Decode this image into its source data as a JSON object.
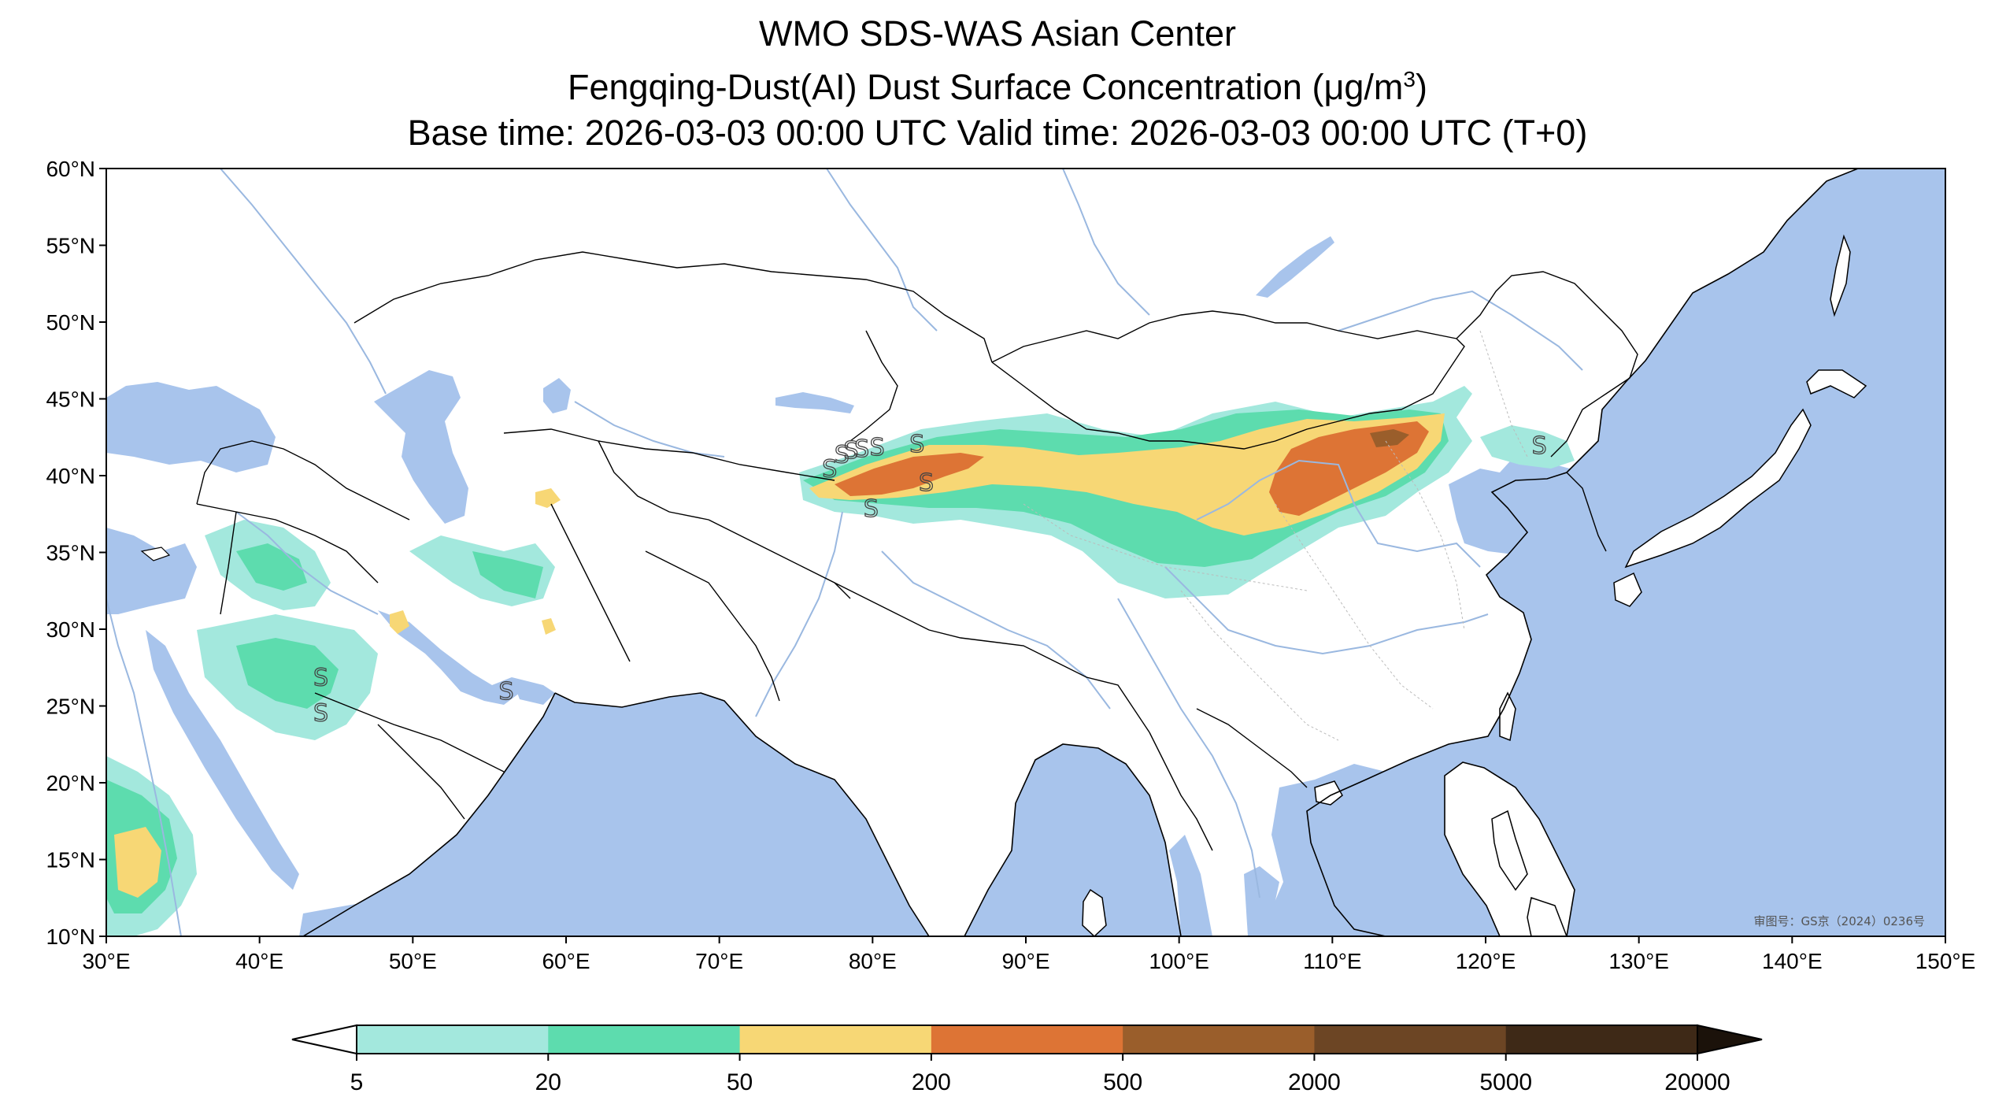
{
  "title": {
    "line1": "WMO SDS-WAS Asian Center",
    "line2_prefix": "Fengqing-Dust(AI) Dust Surface Concentration (",
    "line2_unit": "μg/m",
    "line2_sup": "3",
    "line2_suffix": ")",
    "line3": "Base time: 2026-03-03 00:00 UTC Valid time: 2026-03-03 00:00 UTC (T+0)"
  },
  "map": {
    "lon_range": [
      30,
      150
    ],
    "lat_range": [
      10,
      60
    ],
    "lon_ticks": [
      "30°E",
      "40°E",
      "50°E",
      "60°E",
      "70°E",
      "80°E",
      "90°E",
      "100°E",
      "110°E",
      "120°E",
      "130°E",
      "140°E",
      "150°E"
    ],
    "lat_ticks": [
      "60°N",
      "55°N",
      "50°N",
      "45°N",
      "40°N",
      "35°N",
      "30°N",
      "25°N",
      "20°N",
      "15°N",
      "10°N"
    ],
    "approval_note": "审图号：GS京（2024）0236号",
    "station_marker": "S",
    "ocean_color": "#a8c4ec",
    "border_color": "#000000",
    "river_color": "#9ab8e0"
  },
  "colorbar": {
    "ticks": [
      "5",
      "20",
      "50",
      "200",
      "500",
      "2000",
      "5000",
      "20000"
    ],
    "colors": [
      "#a3e8dd",
      "#5ddcae",
      "#f7d775",
      "#dd7435",
      "#9a5e2b",
      "#6c4524",
      "#3e2917"
    ],
    "under_color": "#ffffff",
    "over_color": "#1b120a",
    "extend": "both"
  }
}
